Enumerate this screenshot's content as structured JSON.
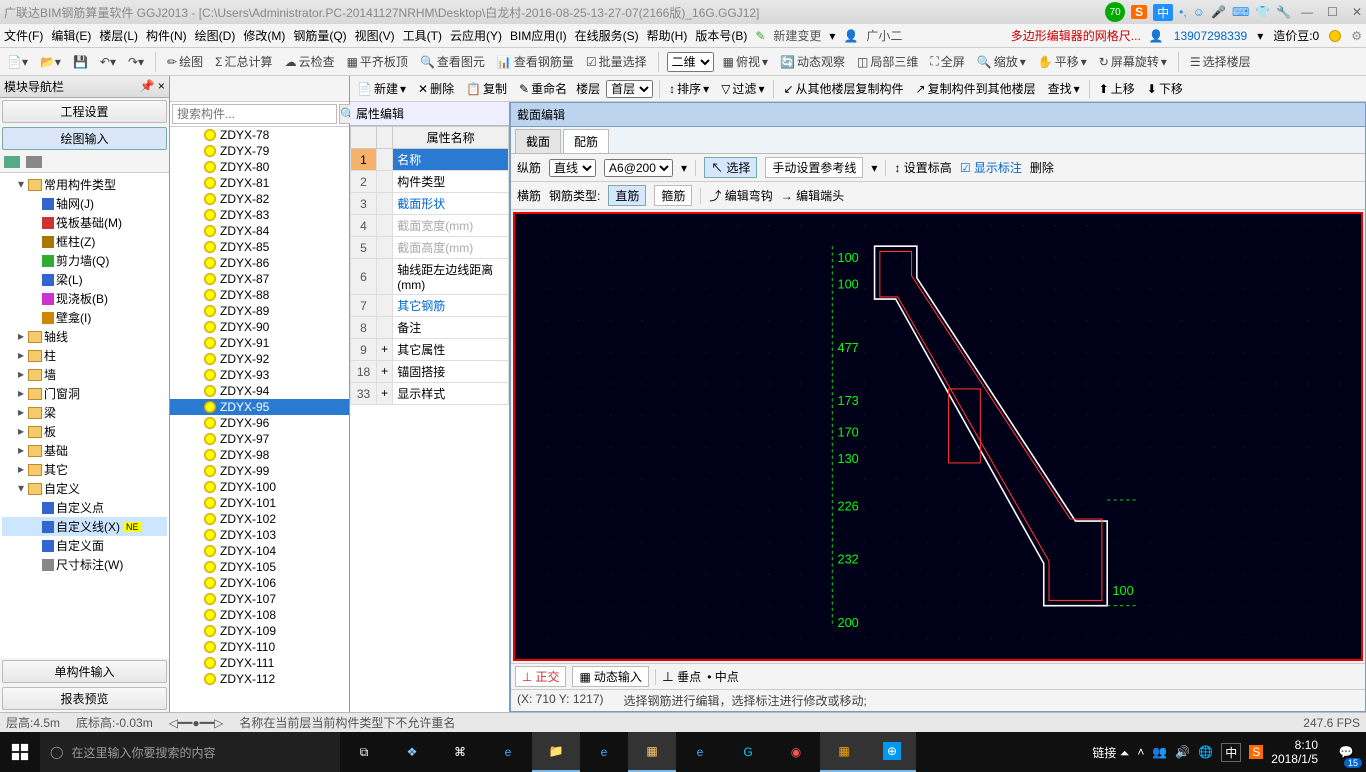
{
  "title": "广联达BIM钢筋算量软件 GGJ2013 - [C:\\Users\\Administrator.PC-20141127NRHM\\Desktop\\白龙村-2016-08-25-13-27-07(2166版)_16G.GGJ12]",
  "score": "70",
  "menus": [
    "文件(F)",
    "编辑(E)",
    "楼层(L)",
    "构件(N)",
    "绘图(D)",
    "修改(M)",
    "钢筋量(Q)",
    "视图(V)",
    "工具(T)",
    "云应用(Y)",
    "BIM应用(I)",
    "在线服务(S)",
    "帮助(H)",
    "版本号(B)"
  ],
  "newchange": "新建变更",
  "username": "广小二",
  "alert": "多边形编辑器的网格尺...",
  "phone": "13907298339",
  "cost_label": "造价豆:0",
  "toolbar1": [
    "绘图",
    "汇总计算",
    "云检查",
    "平齐板顶",
    "查看图元",
    "查看钢筋量",
    "批量选择",
    "二维",
    "俯视",
    "动态观察",
    "局部三维",
    "全屏",
    "缩放",
    "平移",
    "屏幕旋转",
    "选择楼层"
  ],
  "leftnav": {
    "header": "模块导航栏",
    "tabs": [
      "工程设置",
      "绘图输入"
    ],
    "bottom": [
      "单构件输入",
      "报表预览"
    ]
  },
  "tree": [
    {
      "lvl": 1,
      "exp": "▾",
      "type": "fold",
      "label": "常用构件类型"
    },
    {
      "lvl": 2,
      "type": "leaf",
      "label": "轴网(J)",
      "color": "#3366cc"
    },
    {
      "lvl": 2,
      "type": "leaf",
      "label": "筏板基础(M)",
      "color": "#cc3333"
    },
    {
      "lvl": 2,
      "type": "leaf",
      "label": "框柱(Z)",
      "color": "#aa7700"
    },
    {
      "lvl": 2,
      "type": "leaf",
      "label": "剪力墙(Q)",
      "color": "#33aa33"
    },
    {
      "lvl": 2,
      "type": "leaf",
      "label": "梁(L)",
      "color": "#3366cc"
    },
    {
      "lvl": 2,
      "type": "leaf",
      "label": "现浇板(B)",
      "color": "#cc33cc"
    },
    {
      "lvl": 2,
      "type": "leaf",
      "label": "壁龛(I)",
      "color": "#cc8800"
    },
    {
      "lvl": 1,
      "exp": "▸",
      "type": "fold",
      "label": "轴线"
    },
    {
      "lvl": 1,
      "exp": "▸",
      "type": "fold",
      "label": "柱"
    },
    {
      "lvl": 1,
      "exp": "▸",
      "type": "fold",
      "label": "墙"
    },
    {
      "lvl": 1,
      "exp": "▸",
      "type": "fold",
      "label": "门窗洞"
    },
    {
      "lvl": 1,
      "exp": "▸",
      "type": "fold",
      "label": "梁"
    },
    {
      "lvl": 1,
      "exp": "▸",
      "type": "fold",
      "label": "板"
    },
    {
      "lvl": 1,
      "exp": "▸",
      "type": "fold",
      "label": "基础"
    },
    {
      "lvl": 1,
      "exp": "▸",
      "type": "fold",
      "label": "其它"
    },
    {
      "lvl": 1,
      "exp": "▾",
      "type": "fold",
      "label": "自定义"
    },
    {
      "lvl": 2,
      "type": "leaf",
      "label": "自定义点",
      "color": "#3366cc"
    },
    {
      "lvl": 2,
      "type": "leaf",
      "label": "自定义线(X)",
      "color": "#3366cc",
      "sel": true,
      "new": true
    },
    {
      "lvl": 2,
      "type": "leaf",
      "label": "自定义面",
      "color": "#3366cc"
    },
    {
      "lvl": 2,
      "type": "leaf",
      "label": "尺寸标注(W)",
      "color": "#888"
    }
  ],
  "search_ph": "搜索构件...",
  "components": [
    "ZDYX-78",
    "ZDYX-79",
    "ZDYX-80",
    "ZDYX-81",
    "ZDYX-82",
    "ZDYX-83",
    "ZDYX-84",
    "ZDYX-85",
    "ZDYX-86",
    "ZDYX-87",
    "ZDYX-88",
    "ZDYX-89",
    "ZDYX-90",
    "ZDYX-91",
    "ZDYX-92",
    "ZDYX-93",
    "ZDYX-94",
    "ZDYX-95",
    "ZDYX-96",
    "ZDYX-97",
    "ZDYX-98",
    "ZDYX-99",
    "ZDYX-100",
    "ZDYX-101",
    "ZDYX-102",
    "ZDYX-103",
    "ZDYX-104",
    "ZDYX-105",
    "ZDYX-106",
    "ZDYX-107",
    "ZDYX-108",
    "ZDYX-109",
    "ZDYX-110",
    "ZDYX-111",
    "ZDYX-112"
  ],
  "comp_selected": "ZDYX-95",
  "localbar": {
    "new": "新建",
    "del": "删除",
    "copy": "复制",
    "rename": "重命名",
    "floor": "楼层",
    "firstfl": "首层",
    "sort": "排序",
    "filter": "过滤",
    "copyfrom": "从其他楼层复制构件",
    "copyto": "复制构件到其他楼层",
    "find": "查找",
    "up": "上移",
    "down": "下移"
  },
  "prop": {
    "header": "属性编辑",
    "col": "属性名称",
    "rows": [
      {
        "n": "1",
        "label": "名称",
        "blue": true,
        "hl": true
      },
      {
        "n": "2",
        "label": "构件类型"
      },
      {
        "n": "3",
        "label": "截面形状",
        "blue": true
      },
      {
        "n": "4",
        "label": "截面宽度(mm)",
        "gray": true
      },
      {
        "n": "5",
        "label": "截面高度(mm)",
        "gray": true
      },
      {
        "n": "6",
        "label": "轴线距左边线距离(mm)"
      },
      {
        "n": "7",
        "label": "其它钢筋",
        "blue": true
      },
      {
        "n": "8",
        "label": "备注"
      },
      {
        "n": "9",
        "label": "其它属性",
        "plus": true
      },
      {
        "n": "18",
        "label": "锚固搭接",
        "plus": true
      },
      {
        "n": "33",
        "label": "显示样式",
        "plus": true
      }
    ]
  },
  "section": {
    "header": "截面编辑",
    "tabs": [
      "截面",
      "配筋"
    ],
    "active_tab": "配筋",
    "row1": {
      "label": "纵筋",
      "type": "直线",
      "spec": "A6@200",
      "select": "选择",
      "manual": "手动设置参考线",
      "setelev": "设置标高",
      "showlab": "显示标注",
      "del": "删除"
    },
    "row2": {
      "label": "横筋",
      "typelabel": "钢筋类型:",
      "straight": "直筋",
      "hoop": "箍筋",
      "edithook": "编辑弯钩",
      "editend": "编辑端头"
    },
    "foot": {
      "ortho": "正交",
      "dyn": "动态输入",
      "perp": "垂点",
      "mid": "中点"
    },
    "status": {
      "coord": "(X: 710 Y: 1217)",
      "msg": "选择钢筋进行编辑，选择标注进行修改或移动;"
    },
    "dims": [
      "100",
      "100",
      "477",
      "173",
      "170",
      "130",
      "226",
      "232",
      "100",
      "200"
    ]
  },
  "statusbar": {
    "floor": "层高:4.5m",
    "bottom": "底标高:-0.03m",
    "msg": "名称在当前层当前构件类型下不允许重名",
    "fps": "247.6 FPS"
  },
  "taskbar": {
    "search": "在这里输入你要搜索的内容",
    "tray": {
      "link": "链接",
      "ime": "中",
      "time": "8:10",
      "date": "2018/1/5",
      "notif": "15"
    }
  }
}
